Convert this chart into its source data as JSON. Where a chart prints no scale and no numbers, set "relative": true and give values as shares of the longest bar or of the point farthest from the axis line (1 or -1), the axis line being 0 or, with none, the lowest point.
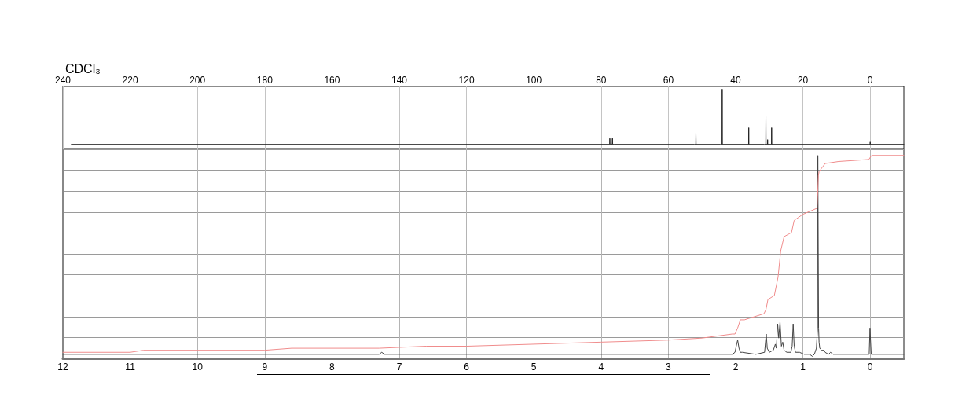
{
  "chart_data": [
    {
      "type": "line",
      "title": "CDCl₃",
      "relative": true,
      "xlim": [
        240,
        -10
      ],
      "xticks": [
        240,
        220,
        200,
        180,
        160,
        140,
        120,
        100,
        80,
        60,
        40,
        20,
        0
      ],
      "grid": "x",
      "tick_labels": "x",
      "series": [
        {
          "color": "#222222",
          "x": [
            237.5,
            78,
            77.45,
            77.4,
            77.35,
            77.05,
            77,
            76.95,
            76.65,
            76.6,
            76.55,
            76,
            52.2,
            51.85,
            51.8,
            51.75,
            44.6,
            44.05,
            44,
            43.95,
            36.6,
            36.15,
            36.1,
            36.05,
            31.5,
            31.05,
            31,
            30.95,
            30.55,
            30.5,
            30.45,
            29.35,
            29.3,
            29.25,
            28.8,
            0.3,
            0.05,
            0,
            -0.05,
            -10
          ],
          "values": [
            0.07,
            0.07,
            0.07,
            0.17,
            0.07,
            0.07,
            0.17,
            0.07,
            0.07,
            0.17,
            0.07,
            0.07,
            0.07,
            0.07,
            0.26,
            0.07,
            0.07,
            0.07,
            1,
            0.07,
            0.07,
            0.07,
            0.35,
            0.07,
            0.07,
            0.07,
            0.54,
            0.07,
            0.07,
            0.15,
            0.07,
            0.07,
            0.35,
            0.07,
            0.07,
            0.07,
            0.07,
            0.11,
            0.07,
            0.07
          ]
        }
      ]
    },
    {
      "type": "line",
      "relative": true,
      "xlim": [
        12,
        -0.5
      ],
      "xticks": [
        12,
        11,
        10,
        9,
        8,
        7,
        6,
        5,
        4,
        3,
        2,
        1,
        0
      ],
      "grid": true,
      "tick_labels": "x",
      "series": [
        {
          "color": "#444444",
          "x": [
            12,
            7.3,
            7.26,
            7.22,
            2.05,
            2.01,
            1.985,
            1.97,
            1.95,
            1.93,
            1.9,
            1.7,
            1.57,
            1.545,
            1.53,
            1.5,
            1.44,
            1.41,
            1.395,
            1.375,
            1.36,
            1.34,
            1.32,
            1.3,
            1.28,
            1.24,
            1.18,
            1.16,
            1.145,
            1.13,
            1.11,
            1.05,
            0.98,
            0.9,
            0.86,
            0.83,
            0.8,
            0.783,
            0.778,
            0.772,
            0.767,
            0.76,
            0.75,
            0.72,
            0.69,
            0.67,
            0.62,
            0.59,
            0.55,
            0.015,
            0.003,
            -0.003,
            -0.015,
            -0.5
          ],
          "values": [
            0.02,
            0.02,
            0.03,
            0.02,
            0.02,
            0.03,
            0.07,
            0.09,
            0.05,
            0.03,
            0.03,
            0.02,
            0.03,
            0.12,
            0.05,
            0.03,
            0.04,
            0.07,
            0.05,
            0.17,
            0.1,
            0.18,
            0.06,
            0.08,
            0.04,
            0.03,
            0.03,
            0.06,
            0.17,
            0.06,
            0.03,
            0.03,
            0.02,
            0.02,
            0.01,
            0.02,
            0.05,
            0.15,
            1,
            1,
            0.15,
            0.08,
            0.05,
            0.04,
            0.04,
            0.03,
            0.02,
            0.03,
            0.02,
            0.02,
            0.15,
            0.15,
            0.02,
            0.02
          ]
        },
        {
          "color": "#f08c8c",
          "x": [
            12,
            11,
            10.8,
            10,
            9.5,
            9,
            8.6,
            8,
            7.3,
            6.6,
            6,
            5,
            4,
            3,
            2.5,
            2.05,
            2.01,
            1.97,
            1.93,
            1.87,
            1.58,
            1.55,
            1.52,
            1.425,
            1.37,
            1.33,
            1.28,
            1.17,
            1.13,
            1,
            0.79,
            0.77,
            0.76,
            0.67,
            0.47,
            0.02,
            -0.02,
            -0.5
          ],
          "values": [
            0.03,
            0.03,
            0.04,
            0.04,
            0.04,
            0.04,
            0.05,
            0.05,
            0.05,
            0.06,
            0.06,
            0.07,
            0.08,
            0.09,
            0.1,
            0.12,
            0.12,
            0.15,
            0.19,
            0.19,
            0.22,
            0.24,
            0.29,
            0.31,
            0.4,
            0.53,
            0.6,
            0.62,
            0.68,
            0.71,
            0.74,
            0.9,
            0.92,
            0.96,
            0.97,
            0.98,
            1,
            1
          ]
        }
      ]
    }
  ]
}
